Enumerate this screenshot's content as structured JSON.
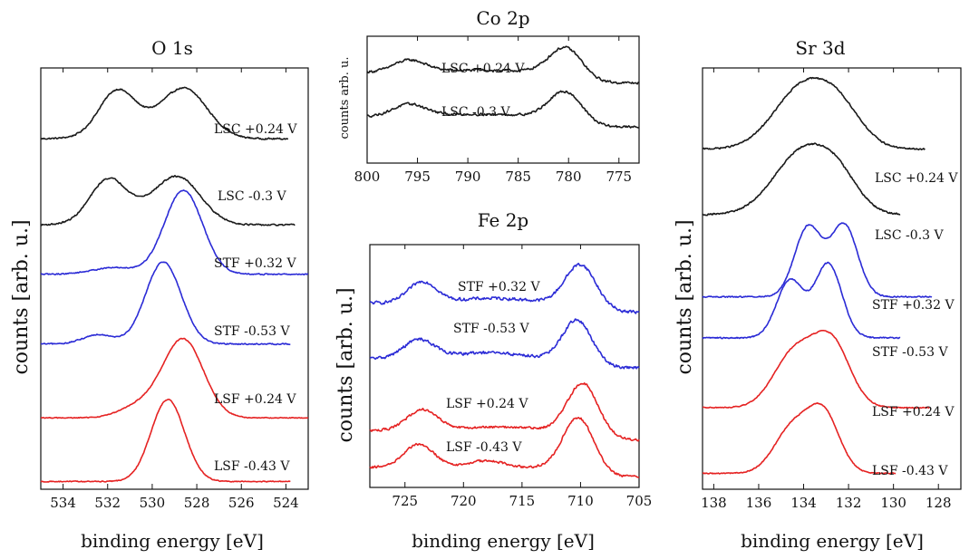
{
  "chart_data": [
    {
      "id": "o1s",
      "type": "line",
      "title": "O 1s",
      "xlabel": "binding energy [eV]",
      "ylabel": "counts [arb. u.]",
      "xlim": [
        535,
        523
      ],
      "ylim": [
        0,
        100
      ],
      "xticks": [
        534,
        532,
        530,
        528,
        526,
        524
      ],
      "series": [
        {
          "name": "LSC +0.24 V",
          "color": "#1a1a1a",
          "xend": 523.9,
          "baseline": 84.5,
          "noise": 0.25,
          "peaks": [
            [
              531.6,
              10,
              0.8
            ],
            [
              528.5,
              10.5,
              1.0
            ],
            [
              530.1,
              3,
              1.6
            ]
          ]
        },
        {
          "name": "LSC -0.3 V",
          "color": "#1a1a1a",
          "xend": 523.6,
          "baseline": 63.5,
          "noise": 0.25,
          "peaks": [
            [
              532.0,
              9.5,
              0.8
            ],
            [
              528.8,
              10,
              1.0
            ],
            [
              530.4,
              3,
              1.6
            ]
          ]
        },
        {
          "name": "STF +0.32 V",
          "color": "#2b2bd6",
          "xend": 523.0,
          "baseline": 51.5,
          "noise": 0.2,
          "peaks": [
            [
              528.6,
              20.5,
              0.85
            ],
            [
              531.7,
              1.6,
              1.0
            ]
          ]
        },
        {
          "name": "STF -0.53 V",
          "color": "#2b2bd6",
          "xend": 523.8,
          "baseline": 34.5,
          "noise": 0.2,
          "peaks": [
            [
              529.5,
              20,
              0.8
            ],
            [
              532.4,
              2.3,
              0.7
            ]
          ]
        },
        {
          "name": "LSF +0.24 V",
          "color": "#e52222",
          "xend": 523.0,
          "baseline": 16.5,
          "noise": 0.15,
          "peaks": [
            [
              528.6,
              19,
              0.9
            ],
            [
              530.5,
              3,
              0.9
            ]
          ]
        },
        {
          "name": "LSF -0.43 V",
          "color": "#e52222",
          "xend": 523.8,
          "baseline": 1.0,
          "noise": 0.15,
          "peaks": [
            [
              529.3,
              20,
              0.75
            ]
          ]
        }
      ]
    },
    {
      "id": "co2p",
      "type": "line",
      "title": "Co 2p",
      "xlabel": "",
      "ylabel": "counts arb. u.",
      "xlim": [
        800,
        773
      ],
      "ylim": [
        0,
        100
      ],
      "xticks": [
        800,
        795,
        790,
        785,
        780,
        775
      ],
      "series": [
        {
          "name": "LSC +0.24 V",
          "color": "#1a1a1a",
          "xend": 773,
          "baseline": 66,
          "noise": 1.4,
          "step": 9,
          "stepx": 778.5,
          "peaks": [
            [
              795.8,
              10,
              1.6
            ],
            [
              780.3,
              22,
              1.6
            ],
            [
              789,
              2,
              5
            ]
          ]
        },
        {
          "name": "LSC -0.3 V",
          "color": "#1a1a1a",
          "xend": 773,
          "baseline": 28,
          "noise": 1.4,
          "step": 9,
          "stepx": 778.5,
          "peaks": [
            [
              795.8,
              10,
              1.6
            ],
            [
              780.3,
              22,
              1.6
            ],
            [
              789,
              2,
              5
            ]
          ]
        }
      ]
    },
    {
      "id": "fe2p",
      "type": "line",
      "title": "Fe 2p",
      "xlabel": "binding energy [eV]",
      "ylabel": "counts [arb. u.]",
      "xlim": [
        728,
        705
      ],
      "ylim": [
        0,
        100
      ],
      "xticks": [
        725,
        720,
        715,
        710,
        705
      ],
      "series": [
        {
          "name": "STF +0.32 V",
          "color": "#2b2bd6",
          "xend": 705,
          "baseline": 74,
          "noise": 0.9,
          "step": 4,
          "stepx": 708.5,
          "peaks": [
            [
              723.5,
              9,
              1.2
            ],
            [
              710.0,
              17,
              1.3
            ],
            [
              717.5,
              2,
              3
            ]
          ]
        },
        {
          "name": "STF -0.53 V",
          "color": "#2b2bd6",
          "xend": 705,
          "baseline": 50,
          "noise": 0.9,
          "step": 4,
          "stepx": 708.5,
          "peaks": [
            [
              723.8,
              8,
              1.3
            ],
            [
              710.3,
              17,
              1.2
            ],
            [
              718,
              2.5,
              3
            ]
          ]
        },
        {
          "name": "LSF +0.24 V",
          "color": "#e52222",
          "xend": 705,
          "baseline": 19,
          "noise": 0.7,
          "step": 4,
          "stepx": 708.5,
          "peaks": [
            [
              723.5,
              9,
              1.3
            ],
            [
              709.8,
              21,
              1.3
            ],
            [
              717,
              1.5,
              3
            ]
          ]
        },
        {
          "name": "LSF -0.43 V",
          "color": "#e52222",
          "xend": 705,
          "baseline": 3,
          "noise": 0.7,
          "step": 4,
          "stepx": 708.5,
          "peaks": [
            [
              723.8,
              10,
              1.3
            ],
            [
              710.2,
              22,
              1.3
            ],
            [
              718,
              3,
              1.5
            ]
          ]
        }
      ]
    },
    {
      "id": "sr3d",
      "type": "line",
      "title": "Sr 3d",
      "xlabel": "binding energy [eV]",
      "ylabel": "counts [arb. u.]",
      "xlim": [
        138.5,
        127
      ],
      "ylim": [
        0,
        100
      ],
      "xticks": [
        138,
        136,
        134,
        132,
        130,
        128
      ],
      "series": [
        {
          "name": "LSC +0.24 V",
          "color": "#1a1a1a",
          "xend": 128.6,
          "baseline": 82,
          "noise": 0.25,
          "peaks": [
            [
              134.0,
              15,
              1.3
            ],
            [
              132.3,
              7,
              1.0
            ]
          ]
        },
        {
          "name": "LSC -0.3 V",
          "color": "#1a1a1a",
          "xend": 129.7,
          "baseline": 66,
          "noise": 0.25,
          "peaks": [
            [
              134.0,
              15.5,
              1.3
            ],
            [
              132.4,
              6,
              0.9
            ]
          ]
        },
        {
          "name": "STF +0.32 V",
          "color": "#2b2bd6",
          "xend": 128.3,
          "baseline": 46,
          "noise": 0.2,
          "peaks": [
            [
              133.8,
              17,
              0.6
            ],
            [
              132.2,
              17.5,
              0.6
            ]
          ]
        },
        {
          "name": "STF -0.53 V",
          "color": "#2b2bd6",
          "xend": 129.7,
          "baseline": 36,
          "noise": 0.2,
          "peaks": [
            [
              134.6,
              14,
              0.6
            ],
            [
              132.9,
              18,
              0.6
            ]
          ]
        },
        {
          "name": "LSF +0.24 V",
          "color": "#e52222",
          "xend": 128.4,
          "baseline": 19,
          "noise": 0.15,
          "peaks": [
            [
              134.5,
              11,
              0.9
            ],
            [
              132.7,
              13.5,
              0.8
            ],
            [
              133.6,
              4,
              1.0
            ]
          ]
        },
        {
          "name": "LSF -0.43 V",
          "color": "#e52222",
          "xend": 129.9,
          "baseline": 3,
          "noise": 0.15,
          "peaks": [
            [
              134.5,
              11,
              0.8
            ],
            [
              133.1,
              14,
              0.7
            ]
          ]
        }
      ]
    }
  ]
}
